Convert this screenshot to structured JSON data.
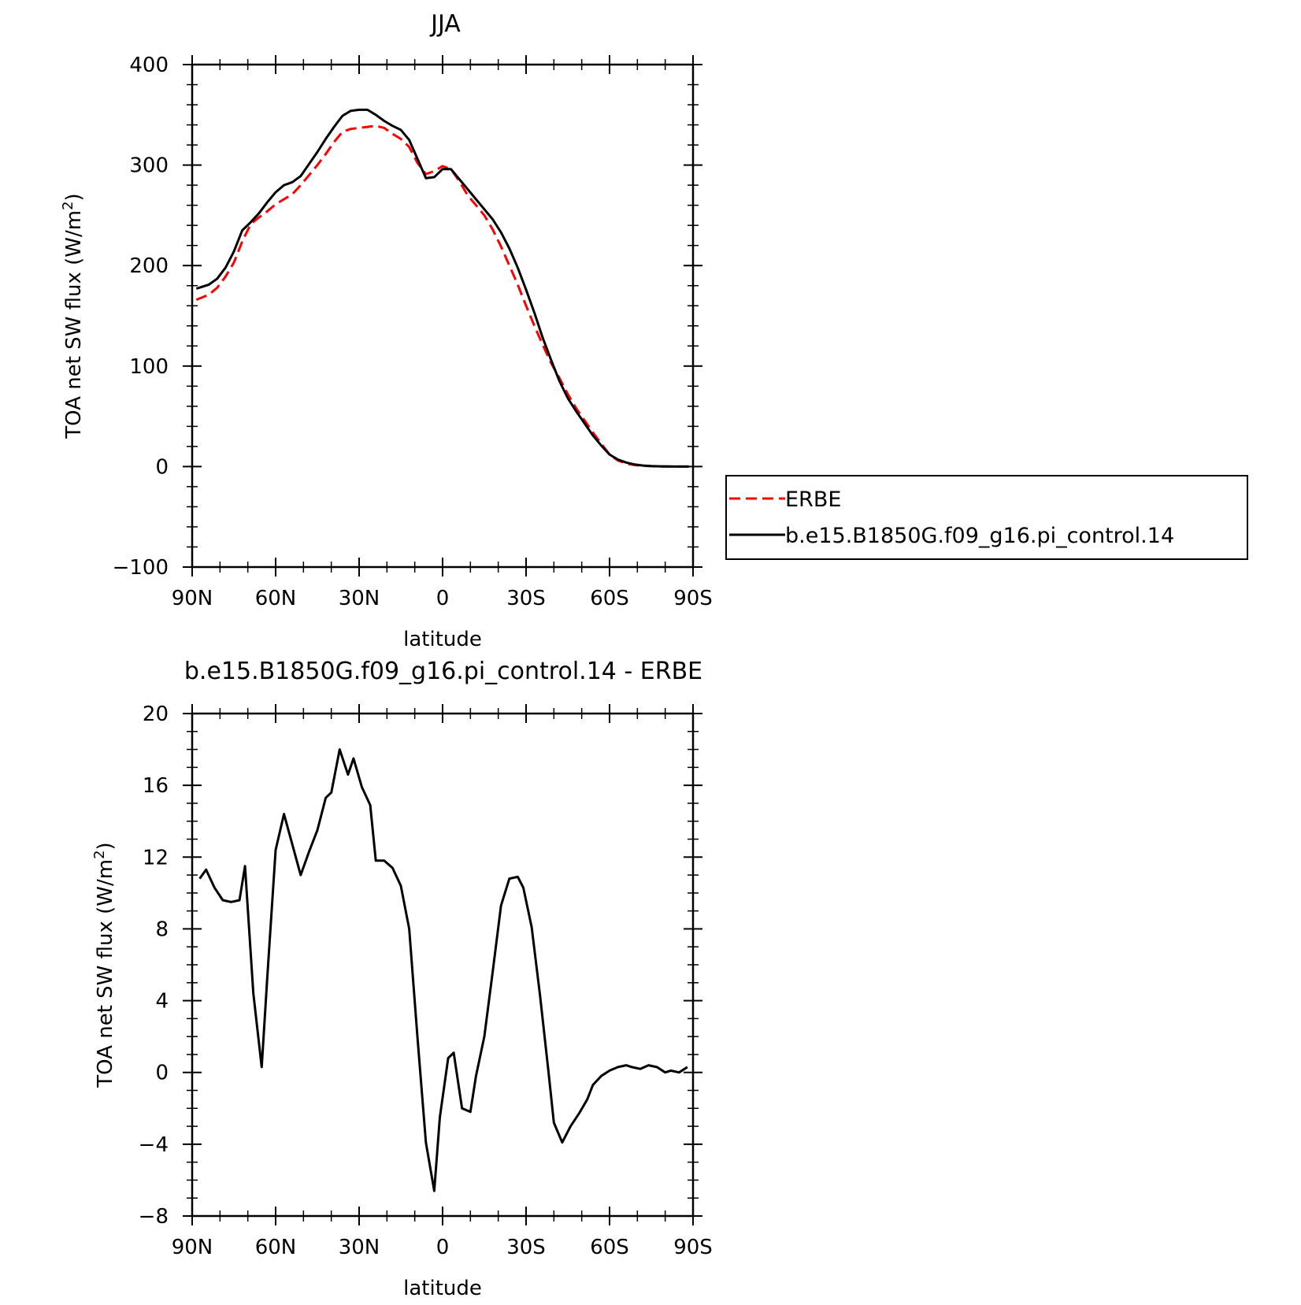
{
  "colors": {
    "erbe": "#ff0000",
    "model": "#000000",
    "axis": "#000000",
    "background": "#ffffff"
  },
  "legend": {
    "entries": [
      {
        "label": "ERBE",
        "color": "#ff0000",
        "style": "dashed"
      },
      {
        "label": "b.e15.B1850G.f09_g16.pi_control.14",
        "color": "#000000",
        "style": "solid"
      }
    ]
  },
  "chart_data": [
    {
      "type": "line",
      "title": "JJA",
      "xlabel": "latitude",
      "ylabel": "TOA net SW flux (W/m²)",
      "ylabel_main": "TOA net SW flux (W/m",
      "ylabel_sup": "2",
      "ylabel_close": ")",
      "xlim": [
        90,
        -90
      ],
      "ylim": [
        -100,
        400
      ],
      "xticks": [
        90,
        60,
        30,
        0,
        -30,
        -60,
        -90
      ],
      "xtick_labels": [
        "90N",
        "60N",
        "30N",
        "0",
        "30S",
        "60S",
        "90S"
      ],
      "yticks": [
        -100,
        0,
        100,
        200,
        300,
        400
      ],
      "ytick_labels": [
        "-100",
        "0",
        "100",
        "200",
        "300",
        "400"
      ],
      "legend_position": "right",
      "series": [
        {
          "name": "ERBE",
          "color": "#ff0000",
          "dash": true,
          "x": [
            88.5,
            84,
            81,
            78,
            75,
            72,
            69,
            66,
            63,
            60,
            57,
            54,
            51,
            48,
            45,
            42,
            39,
            36,
            33,
            30,
            27,
            24,
            21,
            18,
            15,
            12,
            9,
            6,
            3,
            0,
            -3,
            -6,
            -9,
            -12,
            -15,
            -18,
            -21,
            -24,
            -27,
            -30,
            -33,
            -36,
            -39,
            -42,
            -45,
            -48,
            -51,
            -54,
            -57,
            -60,
            -63,
            -66,
            -69,
            -72,
            -75,
            -78,
            -81,
            -84,
            -88.5
          ],
          "y": [
            166,
            171,
            178,
            189,
            203,
            224,
            241,
            248,
            254,
            261,
            266,
            271,
            280,
            290,
            300,
            311,
            323,
            333,
            336,
            337,
            338,
            339,
            337,
            331,
            326,
            318,
            302,
            291,
            294,
            299,
            296,
            284,
            270,
            260,
            250,
            236,
            219,
            200,
            181,
            160,
            140,
            121,
            103,
            88,
            72,
            58,
            46,
            34,
            23,
            12,
            6,
            3,
            1.5,
            0.8,
            0.3,
            0.1,
            0,
            0,
            0
          ]
        },
        {
          "name": "b.e15.B1850G.f09_g16.pi_control.14",
          "color": "#000000",
          "dash": false,
          "x": [
            88.5,
            84,
            81,
            78,
            75,
            72,
            69,
            66,
            63,
            60,
            57,
            54,
            51,
            48,
            45,
            42,
            39,
            36,
            33,
            30,
            27,
            24,
            21,
            18,
            15,
            12,
            9,
            6,
            3,
            0,
            -3,
            -6,
            -9,
            -12,
            -15,
            -18,
            -21,
            -24,
            -27,
            -30,
            -33,
            -36,
            -39,
            -42,
            -45,
            -48,
            -51,
            -54,
            -57,
            -60,
            -63,
            -66,
            -69,
            -72,
            -75,
            -78,
            -81,
            -84,
            -88.5
          ],
          "y": [
            177,
            181,
            187,
            198,
            214,
            235,
            243,
            252,
            263,
            273,
            280,
            283,
            289,
            301,
            313,
            326,
            338,
            349,
            354,
            355,
            355,
            350,
            344,
            339,
            335,
            325,
            306,
            287,
            288,
            296,
            296,
            286,
            276,
            266,
            256,
            246,
            233,
            217,
            198,
            176,
            153,
            128,
            106,
            85,
            68,
            55,
            43,
            31,
            21,
            12,
            7,
            4,
            2,
            1,
            0.5,
            0.2,
            0.1,
            0,
            0
          ]
        }
      ]
    },
    {
      "type": "line",
      "title": "b.e15.B1850G.f09_g16.pi_control.14 - ERBE",
      "xlabel": "latitude",
      "ylabel": "TOA net SW flux (W/m²)",
      "ylabel_main": "TOA net SW flux (W/m",
      "ylabel_sup": "2",
      "ylabel_close": ")",
      "xlim": [
        90,
        -90
      ],
      "ylim": [
        -8,
        20
      ],
      "xticks": [
        90,
        60,
        30,
        0,
        -30,
        -60,
        -90
      ],
      "xtick_labels": [
        "90N",
        "60N",
        "30N",
        "0",
        "30S",
        "60S",
        "90S"
      ],
      "yticks": [
        -8,
        -4,
        0,
        4,
        8,
        12,
        16,
        20
      ],
      "ytick_labels": [
        "-8",
        "-4",
        "0",
        "4",
        "8",
        "12",
        "16",
        "20"
      ],
      "series": [
        {
          "color": "#000000",
          "dash": false,
          "x": [
            87.3,
            85,
            82,
            79,
            76,
            73,
            71,
            68,
            65,
            63,
            60,
            57,
            54,
            51,
            48,
            45,
            42,
            40,
            37,
            34,
            32,
            29,
            26,
            24,
            21,
            18,
            15,
            12,
            9,
            6,
            3,
            1,
            -2,
            -4,
            -7,
            -10,
            -12,
            -15,
            -18,
            -21,
            -24,
            -27,
            -29,
            -32,
            -35,
            -38,
            -40,
            -43,
            -46,
            -49,
            -52,
            -54,
            -57,
            -60,
            -63,
            -66,
            -68,
            -71,
            -74,
            -77,
            -80,
            -82,
            -85,
            -88
          ],
          "y": [
            10.8,
            11.3,
            10.3,
            9.6,
            9.5,
            9.6,
            11.5,
            4.4,
            0.3,
            5.3,
            12.4,
            14.4,
            12.7,
            11.0,
            12.3,
            13.5,
            15.3,
            15.6,
            18.0,
            16.6,
            17.5,
            15.9,
            14.9,
            11.8,
            11.8,
            11.4,
            10.4,
            8.0,
            1.9,
            -3.9,
            -6.6,
            -2.5,
            0.8,
            1.1,
            -2.0,
            -2.2,
            -0.2,
            2.0,
            5.6,
            9.3,
            10.8,
            10.9,
            10.3,
            8.1,
            4.3,
            0.1,
            -2.8,
            -3.9,
            -3.0,
            -2.3,
            -1.5,
            -0.7,
            -0.2,
            0.1,
            0.3,
            0.4,
            0.3,
            0.2,
            0.4,
            0.3,
            0.0,
            0.1,
            0.0,
            0.3
          ]
        }
      ]
    }
  ]
}
